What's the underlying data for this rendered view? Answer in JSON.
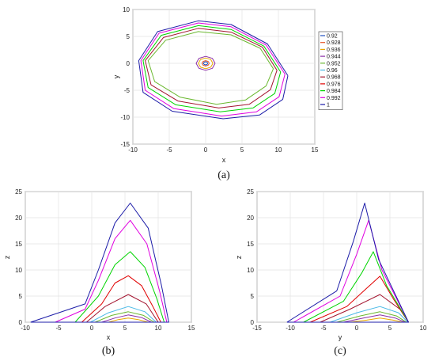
{
  "chart_data": [
    {
      "id": "a",
      "type": "line",
      "caption": "(a)",
      "xlabel": "x",
      "ylabel": "y",
      "xlim": [
        -10,
        15
      ],
      "ylim": [
        -15,
        10
      ],
      "xticks": [
        -10,
        -5,
        0,
        5,
        10,
        15
      ],
      "yticks": [
        -15,
        -10,
        -5,
        0,
        5,
        10
      ],
      "grid": true,
      "legend_position": "right",
      "legend": [
        {
          "name": "0.92",
          "color": "#1f4fbf"
        },
        {
          "name": "0.928",
          "color": "#e5562a"
        },
        {
          "name": "0.936",
          "color": "#e8a800"
        },
        {
          "name": "0.944",
          "color": "#8b2fa8"
        },
        {
          "name": "0.952",
          "color": "#6ab82f"
        },
        {
          "name": "0.96",
          "color": "#49b9e6"
        },
        {
          "name": "0.968",
          "color": "#a3142f"
        },
        {
          "name": "0.976",
          "color": "#e00000"
        },
        {
          "name": "0.984",
          "color": "#00d400"
        },
        {
          "name": "0.992",
          "color": "#e000e0"
        },
        {
          "name": "1",
          "color": "#1c1ca8"
        }
      ],
      "series": [
        {
          "color": "#1f4fbf",
          "x": [
            0.3,
            0.21,
            0,
            -0.21,
            -0.3,
            -0.21,
            0,
            0.21,
            0.3
          ],
          "y": [
            0,
            0.21,
            0.3,
            0.21,
            0,
            -0.21,
            -0.3,
            -0.21,
            0
          ]
        },
        {
          "color": "#e5562a",
          "x": [
            0.5,
            0.35,
            0,
            -0.35,
            -0.5,
            -0.35,
            0,
            0.35,
            0.5
          ],
          "y": [
            0,
            0.35,
            0.5,
            0.35,
            0,
            -0.35,
            -0.5,
            -0.35,
            0
          ]
        },
        {
          "color": "#e8a800",
          "x": [
            1.0,
            0.71,
            0,
            -0.71,
            -1.0,
            -0.71,
            0,
            0.71,
            1.0
          ],
          "y": [
            0,
            0.71,
            1.0,
            0.71,
            0,
            -0.71,
            -1.0,
            -0.71,
            0
          ]
        },
        {
          "color": "#8b2fa8",
          "x": [
            1.3,
            0.92,
            0,
            -0.92,
            -1.3,
            -0.92,
            0,
            0.92,
            1.3
          ],
          "y": [
            0,
            0.92,
            1.3,
            0.92,
            0,
            -0.92,
            -1.3,
            -0.92,
            0
          ]
        },
        {
          "color": "#6ab82f",
          "x": [
            9.3,
            7.5,
            3.5,
            -1.0,
            -5.5,
            -7.9,
            -7.0,
            -3.5,
            1.5,
            5.5,
            8.3,
            9.3
          ],
          "y": [
            -1.0,
            2.8,
            5.3,
            5.9,
            4.3,
            0.5,
            -3.4,
            -6.3,
            -7.6,
            -6.8,
            -4.2,
            -1.0
          ]
        },
        {
          "color": "#a3142f",
          "x": [
            9.8,
            7.8,
            3.5,
            -1.0,
            -5.8,
            -8.3,
            -7.5,
            -3.8,
            1.8,
            6.0,
            8.9,
            9.8
          ],
          "y": [
            -1.3,
            3.0,
            5.8,
            6.5,
            4.8,
            0.5,
            -4.0,
            -7.0,
            -8.3,
            -7.6,
            -4.9,
            -1.3
          ]
        },
        {
          "color": "#00d400",
          "x": [
            10.3,
            8.0,
            3.5,
            -1.0,
            -6.1,
            -8.6,
            -7.9,
            -4.1,
            2.0,
            6.5,
            9.5,
            10.3
          ],
          "y": [
            -1.6,
            3.2,
            6.3,
            7.0,
            5.2,
            0.5,
            -4.5,
            -7.7,
            -9.0,
            -8.3,
            -5.6,
            -1.6
          ]
        },
        {
          "color": "#e000e0",
          "x": [
            10.9,
            8.3,
            3.5,
            -1.0,
            -6.4,
            -8.9,
            -8.3,
            -4.4,
            2.2,
            7.0,
            10.1,
            10.9
          ],
          "y": [
            -2.0,
            3.4,
            6.8,
            7.5,
            5.6,
            0.5,
            -5.0,
            -8.4,
            -9.8,
            -9.0,
            -6.2,
            -2.0
          ]
        },
        {
          "color": "#1c1ca8",
          "x": [
            11.3,
            8.5,
            3.5,
            -1.0,
            -6.6,
            -9.2,
            -8.6,
            -4.6,
            2.4,
            7.4,
            10.6,
            11.3
          ],
          "y": [
            -2.3,
            3.6,
            7.2,
            7.9,
            5.9,
            0.5,
            -5.4,
            -8.9,
            -10.3,
            -9.6,
            -6.7,
            -2.3
          ]
        }
      ]
    },
    {
      "id": "b",
      "type": "line",
      "caption": "(b)",
      "xlabel": "x",
      "ylabel": "z",
      "xlim": [
        -10,
        15
      ],
      "ylim": [
        0,
        25
      ],
      "xticks": [
        -10,
        -5,
        0,
        5,
        10,
        15
      ],
      "yticks": [
        0,
        5,
        10,
        15,
        20,
        25
      ],
      "grid": true,
      "series": [
        {
          "color": "#e8a800",
          "x": [
            2.5,
            4.0,
            5.5,
            7.0,
            8.5,
            2.5
          ],
          "y": [
            0,
            0.5,
            0.8,
            0.5,
            0,
            0
          ]
        },
        {
          "color": "#8b2fa8",
          "x": [
            1.5,
            3.5,
            5.5,
            7.5,
            9.0,
            1.5
          ],
          "y": [
            0,
            0.8,
            1.4,
            0.9,
            0,
            0
          ]
        },
        {
          "color": "#6ab82f",
          "x": [
            0.5,
            3.0,
            5.5,
            7.8,
            9.4,
            0.5
          ],
          "y": [
            0,
            1.3,
            2.0,
            1.3,
            0,
            0
          ]
        },
        {
          "color": "#49b9e6",
          "x": [
            -0.2,
            2.5,
            5.5,
            8.0,
            9.7,
            -0.2
          ],
          "y": [
            0,
            1.8,
            3.0,
            2.0,
            0,
            0
          ]
        },
        {
          "color": "#a3142f",
          "x": [
            -0.8,
            2.0,
            5.5,
            8.2,
            10.0,
            -0.8
          ],
          "y": [
            0,
            3.0,
            5.3,
            3.5,
            0,
            0
          ]
        },
        {
          "color": "#e00000",
          "x": [
            -1.5,
            1.5,
            3.5,
            5.5,
            7.5,
            9.2,
            10.4,
            -1.5
          ],
          "y": [
            0,
            3.5,
            7.5,
            8.9,
            7.0,
            3.0,
            0,
            0
          ]
        },
        {
          "color": "#00d400",
          "x": [
            -2.5,
            1.0,
            3.5,
            5.8,
            8.0,
            9.8,
            10.9,
            -2.5
          ],
          "y": [
            0,
            5.0,
            11.0,
            13.5,
            10.5,
            4.5,
            0,
            0
          ]
        },
        {
          "color": "#e000e0",
          "x": [
            -5.5,
            -1.0,
            1.0,
            3.5,
            5.8,
            8.3,
            10.2,
            11.3,
            -5.5
          ],
          "y": [
            0,
            2.5,
            8.0,
            16.0,
            19.5,
            15.0,
            6.0,
            0,
            0
          ]
        },
        {
          "color": "#1c1ca8",
          "x": [
            -9.2,
            -1.0,
            1.0,
            3.5,
            5.8,
            8.5,
            10.5,
            11.6,
            -9.2
          ],
          "y": [
            0,
            3.5,
            10.0,
            19.0,
            22.8,
            18.0,
            7.0,
            0,
            0
          ]
        }
      ]
    },
    {
      "id": "c",
      "type": "line",
      "caption": "(c)",
      "xlabel": "y",
      "ylabel": "z",
      "xlim": [
        -15,
        10
      ],
      "ylim": [
        0,
        25
      ],
      "xticks": [
        -15,
        -10,
        -5,
        0,
        5,
        10
      ],
      "yticks": [
        0,
        5,
        10,
        15,
        20,
        25
      ],
      "grid": true,
      "series": [
        {
          "color": "#e8a800",
          "x": [
            -1.0,
            1.5,
            3.5,
            5.5,
            7.0,
            -1.0
          ],
          "y": [
            0,
            0.4,
            0.8,
            0.4,
            0,
            0
          ]
        },
        {
          "color": "#8b2fa8",
          "x": [
            -2.0,
            1.0,
            3.5,
            5.8,
            7.3,
            -2.0
          ],
          "y": [
            0,
            0.8,
            1.4,
            0.8,
            0,
            0
          ]
        },
        {
          "color": "#6ab82f",
          "x": [
            -3.0,
            0.5,
            3.5,
            6.0,
            7.5,
            -3.0
          ],
          "y": [
            0,
            1.2,
            2.0,
            1.2,
            0,
            0
          ]
        },
        {
          "color": "#49b9e6",
          "x": [
            -4.0,
            0.0,
            3.5,
            6.3,
            7.7,
            -4.0
          ],
          "y": [
            0,
            1.8,
            3.0,
            1.8,
            0,
            0
          ]
        },
        {
          "color": "#a3142f",
          "x": [
            -5.5,
            -1.0,
            3.5,
            6.5,
            7.8,
            -5.5
          ],
          "y": [
            0,
            2.5,
            5.3,
            2.5,
            0,
            0
          ]
        },
        {
          "color": "#e00000",
          "x": [
            -7.0,
            -1.5,
            1.5,
            3.5,
            5.5,
            7.8,
            -7.0
          ],
          "y": [
            0,
            3.0,
            6.5,
            8.8,
            4.5,
            0,
            0
          ]
        },
        {
          "color": "#00d400",
          "x": [
            -8.0,
            -2.0,
            0.8,
            2.5,
            4.5,
            7.8,
            -8.0
          ],
          "y": [
            0,
            4.0,
            9.5,
            13.5,
            7.0,
            0,
            0
          ]
        },
        {
          "color": "#e000e0",
          "x": [
            -9.5,
            -2.5,
            0.0,
            1.8,
            3.8,
            7.8,
            -9.5
          ],
          "y": [
            0,
            5.0,
            13.0,
            19.5,
            10.0,
            0,
            0
          ]
        },
        {
          "color": "#1c1ca8",
          "x": [
            -10.5,
            -3.0,
            -0.5,
            1.2,
            3.3,
            7.8,
            -10.5
          ],
          "y": [
            0,
            6.0,
            15.5,
            22.8,
            12.0,
            0,
            0
          ]
        }
      ]
    }
  ]
}
